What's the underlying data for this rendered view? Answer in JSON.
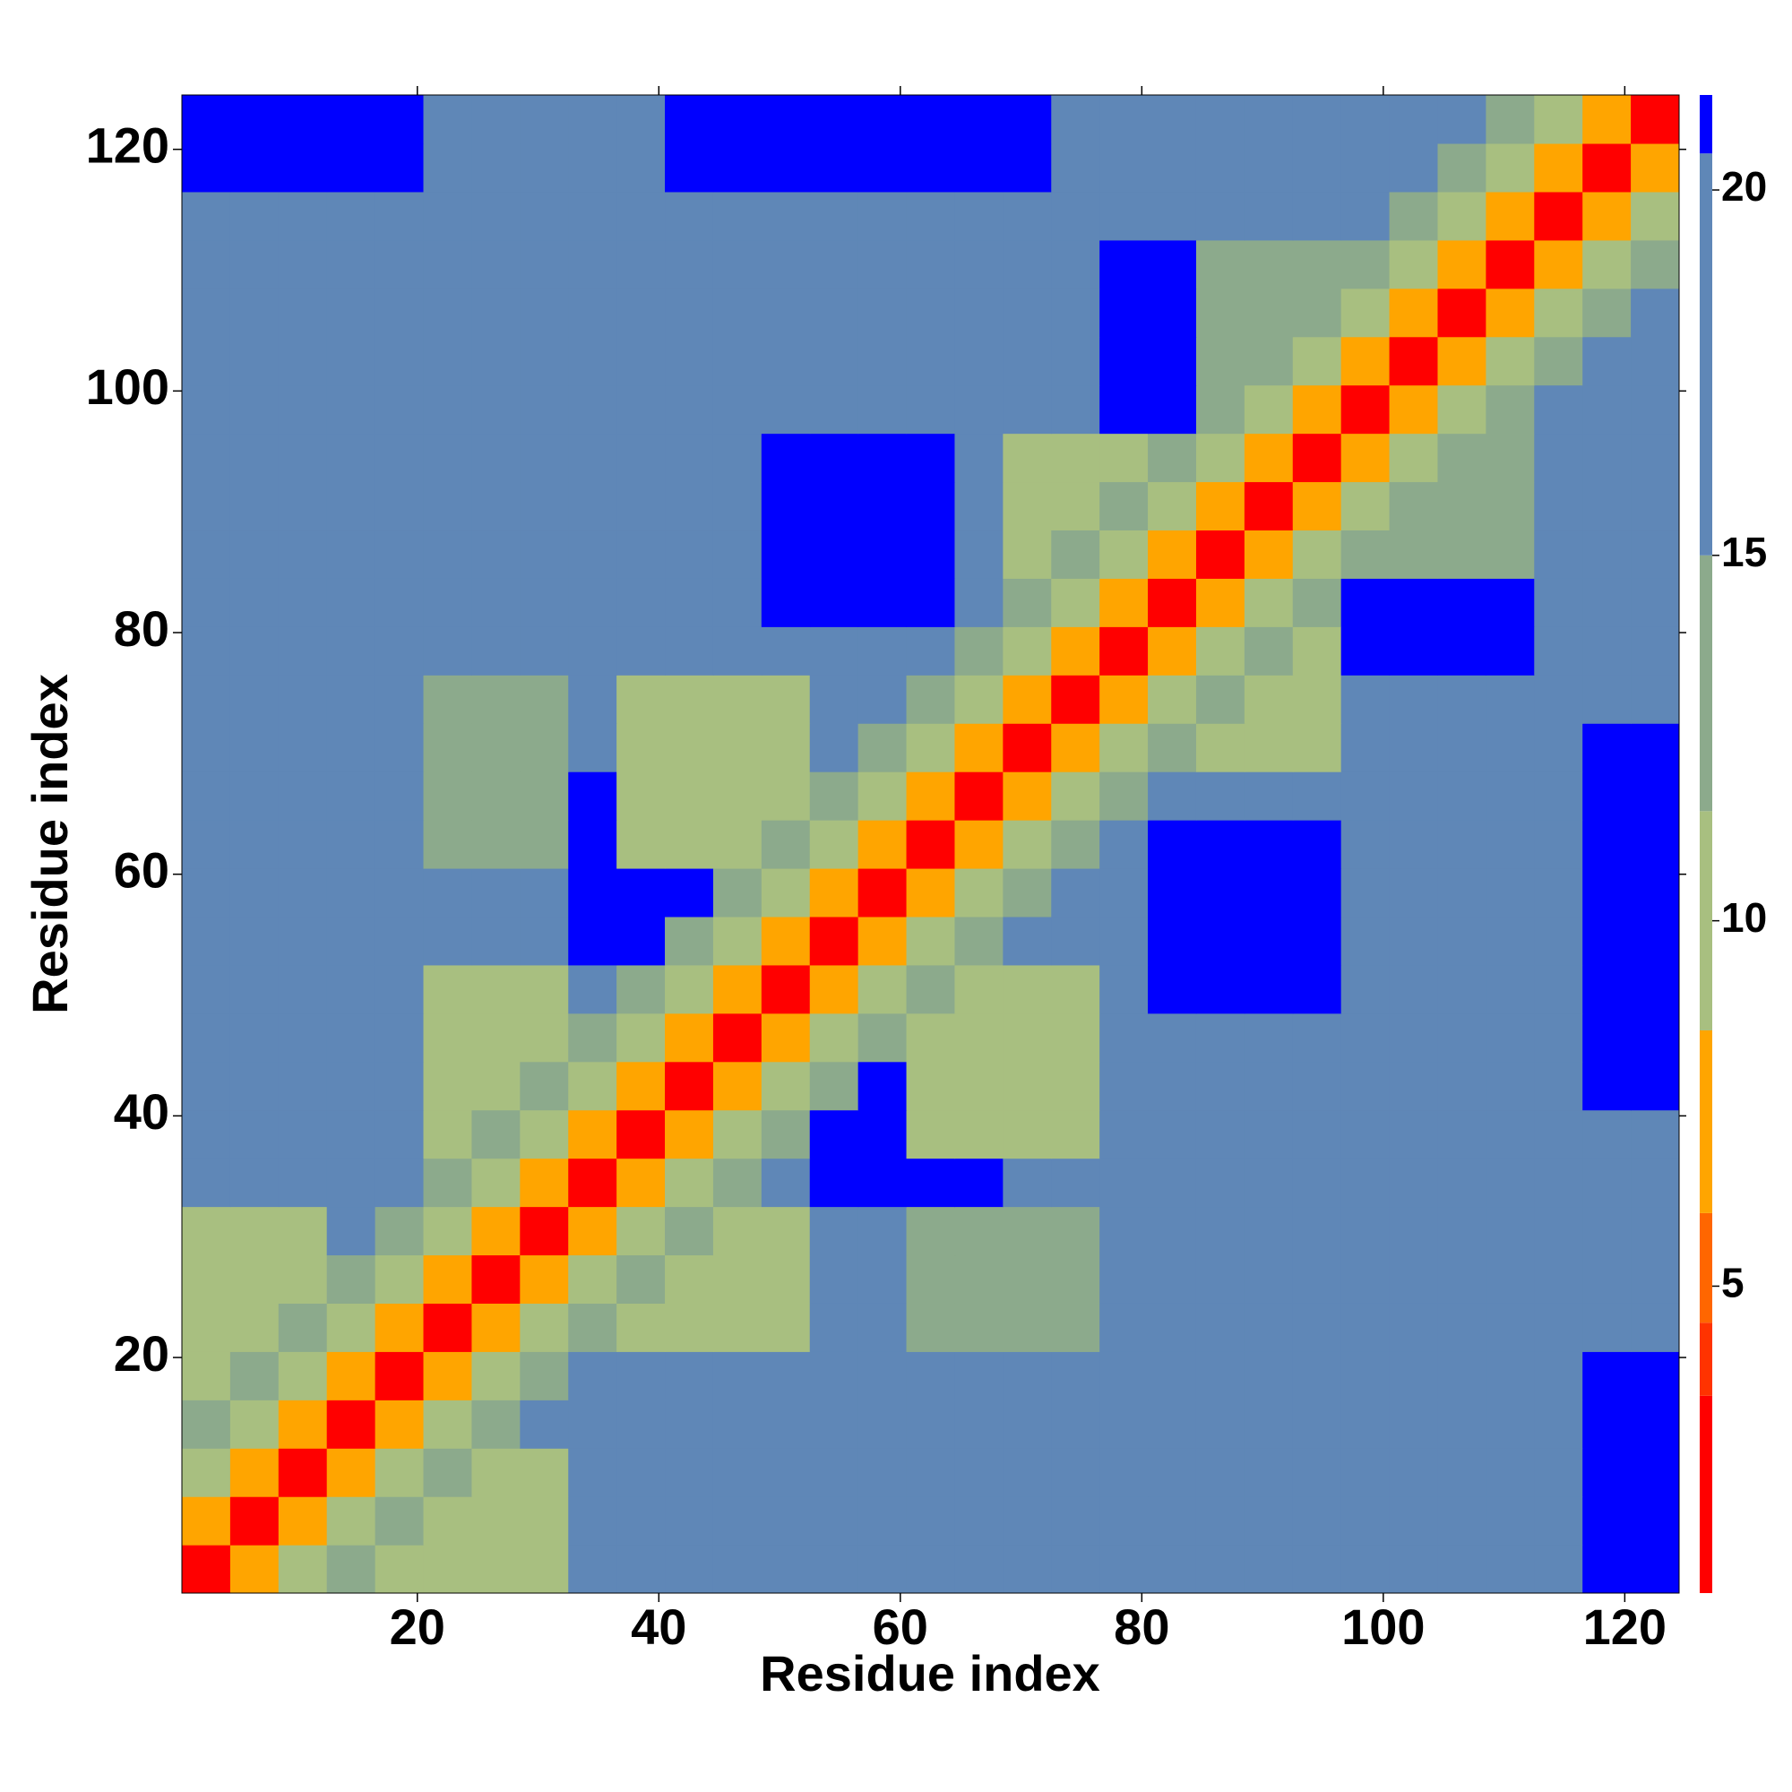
{
  "chart_data": {
    "type": "heatmap",
    "xlabel": "Residue index",
    "ylabel": "Residue index",
    "x": [
      2.5,
      6.5,
      10.5,
      14.5,
      18.5,
      22.5,
      26.5,
      30.5,
      34.5,
      38.5,
      42.5,
      46.5,
      50.5,
      54.5,
      58.5,
      62.5,
      66.5,
      70.5,
      74.5,
      78.5,
      82.5,
      86.5,
      90.5,
      94.5,
      98.5,
      102.5,
      106.5,
      110.5,
      114.5,
      118.5,
      122.5
    ],
    "y": [
      2.5,
      6.5,
      10.5,
      14.5,
      18.5,
      22.5,
      26.5,
      30.5,
      34.5,
      38.5,
      42.5,
      46.5,
      50.5,
      54.5,
      58.5,
      62.5,
      66.5,
      70.5,
      74.5,
      78.5,
      82.5,
      86.5,
      90.5,
      94.5,
      98.5,
      102.5,
      106.5,
      110.5,
      114.5,
      118.5,
      122.5
    ],
    "xlim": [
      0.5,
      124.5
    ],
    "ylim": [
      0.5,
      124.5
    ],
    "xticks": [
      20,
      40,
      60,
      80,
      100,
      120
    ],
    "yticks": [
      20,
      40,
      60,
      80,
      100,
      120
    ],
    "zlim": [
      0.8,
      21.3
    ],
    "zticks": [
      5,
      10,
      15,
      20
    ],
    "color_bounds": [
      3.5,
      4.5,
      6,
      8.5,
      11.5,
      15,
      20.5
    ],
    "colors": [
      "#ff0000",
      "#ff3300",
      "#ff6600",
      "#ffa500",
      "#a8bf80",
      "#8caa8c",
      "#5f87b7",
      "#0000ff"
    ],
    "z": [
      [
        3,
        7,
        11,
        14,
        11,
        11,
        11,
        11,
        15,
        17,
        17,
        17,
        17,
        17,
        19,
        19,
        19,
        18,
        18,
        20,
        20,
        20,
        20,
        20,
        20,
        20,
        20,
        20,
        20,
        21,
        21
      ],
      [
        7,
        3,
        7,
        11,
        14,
        11,
        11,
        11,
        15,
        17,
        17,
        17,
        17,
        17,
        19,
        19,
        19,
        18,
        18,
        20,
        20,
        20,
        20,
        20,
        20,
        20,
        20,
        20,
        20,
        21,
        21
      ],
      [
        11,
        7,
        3,
        7,
        11,
        14,
        11,
        11,
        15,
        17,
        17,
        17,
        17,
        17,
        19,
        19,
        19,
        18,
        18,
        20,
        20,
        20,
        20,
        20,
        20,
        20,
        20,
        20,
        20,
        21,
        21
      ],
      [
        14,
        11,
        7,
        3,
        7,
        11,
        14,
        16,
        15,
        17,
        17,
        17,
        17,
        17,
        19,
        19,
        19,
        18,
        18,
        20,
        20,
        20,
        20,
        20,
        20,
        20,
        20,
        20,
        20,
        21,
        21
      ],
      [
        11,
        14,
        11,
        7,
        3,
        7,
        11,
        14,
        15,
        17,
        17,
        17,
        17,
        17,
        19,
        19,
        19,
        18,
        18,
        20,
        20,
        20,
        20,
        20,
        20,
        20,
        20,
        20,
        20,
        21,
        21
      ],
      [
        11,
        11,
        14,
        11,
        7,
        3,
        7,
        11,
        14,
        11,
        11,
        11,
        11,
        17,
        17,
        12,
        12,
        12,
        12,
        17,
        17,
        17,
        17,
        17,
        17,
        19,
        19,
        19,
        19,
        19,
        19
      ],
      [
        11,
        11,
        11,
        14,
        11,
        7,
        3,
        7,
        11,
        14,
        11,
        11,
        11,
        17,
        17,
        12,
        12,
        12,
        12,
        17,
        17,
        17,
        17,
        17,
        17,
        19,
        19,
        19,
        19,
        19,
        19
      ],
      [
        11,
        11,
        11,
        16,
        14,
        11,
        7,
        3,
        7,
        11,
        14,
        11,
        11,
        17,
        17,
        12,
        12,
        12,
        12,
        17,
        17,
        17,
        17,
        17,
        17,
        19,
        19,
        19,
        19,
        19,
        19
      ],
      [
        15,
        15,
        15,
        15,
        15,
        14,
        11,
        7,
        3,
        7,
        11,
        14,
        16,
        21,
        21,
        21,
        21,
        17,
        17,
        17,
        17,
        17,
        17,
        17,
        17,
        19,
        19,
        19,
        19,
        19,
        19
      ],
      [
        17,
        17,
        17,
        17,
        17,
        11,
        14,
        11,
        7,
        3,
        7,
        11,
        14,
        21,
        21,
        11,
        11,
        11,
        11,
        17,
        17,
        17,
        17,
        17,
        17,
        19,
        19,
        19,
        19,
        19,
        19
      ],
      [
        17,
        17,
        17,
        17,
        17,
        11,
        11,
        14,
        11,
        7,
        3,
        7,
        11,
        14,
        21,
        11,
        11,
        11,
        11,
        17,
        17,
        17,
        17,
        17,
        17,
        17,
        17,
        17,
        17,
        21,
        21
      ],
      [
        17,
        17,
        17,
        17,
        17,
        11,
        11,
        11,
        14,
        11,
        7,
        3,
        7,
        11,
        14,
        11,
        11,
        11,
        11,
        17,
        17,
        17,
        17,
        17,
        17,
        17,
        17,
        17,
        17,
        21,
        21
      ],
      [
        17,
        17,
        17,
        17,
        17,
        11,
        11,
        11,
        16,
        14,
        11,
        7,
        3,
        7,
        11,
        14,
        11,
        11,
        11,
        17,
        21,
        21,
        21,
        21,
        17,
        17,
        17,
        17,
        17,
        21,
        21
      ],
      [
        17,
        17,
        17,
        17,
        17,
        17,
        17,
        17,
        21,
        21,
        14,
        11,
        7,
        3,
        7,
        11,
        14,
        16,
        17,
        17,
        21,
        21,
        21,
        21,
        17,
        17,
        18,
        18,
        18,
        21,
        21
      ],
      [
        19,
        19,
        19,
        19,
        19,
        17,
        17,
        17,
        21,
        21,
        21,
        14,
        11,
        7,
        3,
        7,
        11,
        14,
        16,
        17,
        21,
        21,
        21,
        21,
        17,
        17,
        18,
        18,
        18,
        21,
        21
      ],
      [
        19,
        19,
        19,
        19,
        19,
        12,
        12,
        12,
        21,
        11,
        11,
        11,
        14,
        11,
        7,
        3,
        7,
        11,
        14,
        16,
        21,
        21,
        21,
        21,
        17,
        17,
        18,
        18,
        18,
        21,
        21
      ],
      [
        19,
        19,
        19,
        19,
        19,
        12,
        12,
        12,
        21,
        11,
        11,
        11,
        11,
        14,
        11,
        7,
        3,
        7,
        11,
        14,
        16,
        17,
        17,
        17,
        17,
        17,
        18,
        18,
        18,
        21,
        21
      ],
      [
        18,
        18,
        18,
        18,
        18,
        12,
        12,
        12,
        17,
        11,
        11,
        11,
        11,
        16,
        14,
        11,
        7,
        3,
        7,
        11,
        14,
        11,
        11,
        11,
        17,
        17,
        17,
        17,
        17,
        21,
        21
      ],
      [
        18,
        18,
        18,
        18,
        18,
        12,
        12,
        12,
        17,
        11,
        11,
        11,
        11,
        17,
        16,
        14,
        11,
        7,
        3,
        7,
        11,
        14,
        11,
        11,
        17,
        17,
        17,
        17,
        17,
        17,
        17
      ],
      [
        20,
        20,
        20,
        20,
        20,
        17,
        17,
        17,
        17,
        17,
        17,
        17,
        17,
        17,
        17,
        16,
        14,
        11,
        7,
        3,
        7,
        11,
        14,
        11,
        21,
        21,
        21,
        21,
        17,
        17,
        17
      ],
      [
        20,
        20,
        20,
        20,
        20,
        17,
        17,
        17,
        17,
        17,
        17,
        17,
        21,
        21,
        21,
        21,
        16,
        14,
        11,
        7,
        3,
        7,
        11,
        14,
        21,
        21,
        21,
        21,
        17,
        17,
        17
      ],
      [
        20,
        20,
        20,
        20,
        20,
        17,
        17,
        17,
        17,
        17,
        17,
        17,
        21,
        21,
        21,
        21,
        17,
        11,
        14,
        11,
        7,
        3,
        7,
        11,
        14,
        12,
        12,
        12,
        17,
        17,
        17
      ],
      [
        20,
        20,
        20,
        20,
        20,
        17,
        17,
        17,
        17,
        17,
        17,
        17,
        21,
        21,
        21,
        21,
        17,
        11,
        11,
        14,
        11,
        7,
        3,
        7,
        11,
        14,
        12,
        12,
        17,
        17,
        17
      ],
      [
        20,
        20,
        20,
        20,
        20,
        17,
        17,
        17,
        17,
        17,
        17,
        17,
        21,
        21,
        21,
        21,
        17,
        11,
        11,
        11,
        14,
        11,
        7,
        3,
        7,
        11,
        14,
        12,
        17,
        17,
        17
      ],
      [
        20,
        20,
        20,
        20,
        20,
        17,
        17,
        17,
        17,
        17,
        17,
        17,
        17,
        17,
        17,
        17,
        17,
        17,
        17,
        21,
        21,
        14,
        11,
        7,
        3,
        7,
        11,
        14,
        16,
        17,
        17
      ],
      [
        20,
        20,
        20,
        20,
        20,
        19,
        19,
        19,
        19,
        19,
        17,
        17,
        17,
        17,
        17,
        17,
        17,
        17,
        17,
        21,
        21,
        12,
        14,
        11,
        7,
        3,
        7,
        11,
        14,
        16,
        17
      ],
      [
        20,
        20,
        20,
        20,
        20,
        19,
        19,
        19,
        19,
        19,
        17,
        17,
        17,
        18,
        18,
        18,
        18,
        17,
        17,
        21,
        21,
        12,
        12,
        14,
        11,
        7,
        3,
        7,
        11,
        14,
        16
      ],
      [
        20,
        20,
        20,
        20,
        20,
        19,
        19,
        19,
        19,
        19,
        17,
        17,
        17,
        18,
        18,
        18,
        18,
        17,
        17,
        21,
        21,
        12,
        12,
        12,
        14,
        11,
        7,
        3,
        7,
        11,
        14
      ],
      [
        20,
        20,
        20,
        20,
        20,
        19,
        19,
        19,
        19,
        19,
        17,
        17,
        17,
        18,
        18,
        18,
        18,
        17,
        17,
        17,
        17,
        17,
        17,
        17,
        16,
        14,
        11,
        7,
        3,
        7,
        11
      ],
      [
        21,
        21,
        21,
        21,
        21,
        19,
        19,
        19,
        19,
        19,
        21,
        21,
        21,
        21,
        21,
        21,
        21,
        21,
        17,
        17,
        17,
        17,
        17,
        17,
        17,
        16,
        14,
        11,
        7,
        3,
        7
      ],
      [
        21,
        21,
        21,
        21,
        21,
        19,
        19,
        19,
        19,
        19,
        21,
        21,
        21,
        21,
        21,
        21,
        21,
        21,
        17,
        17,
        17,
        17,
        17,
        17,
        17,
        17,
        16,
        14,
        11,
        7,
        3
      ]
    ]
  }
}
